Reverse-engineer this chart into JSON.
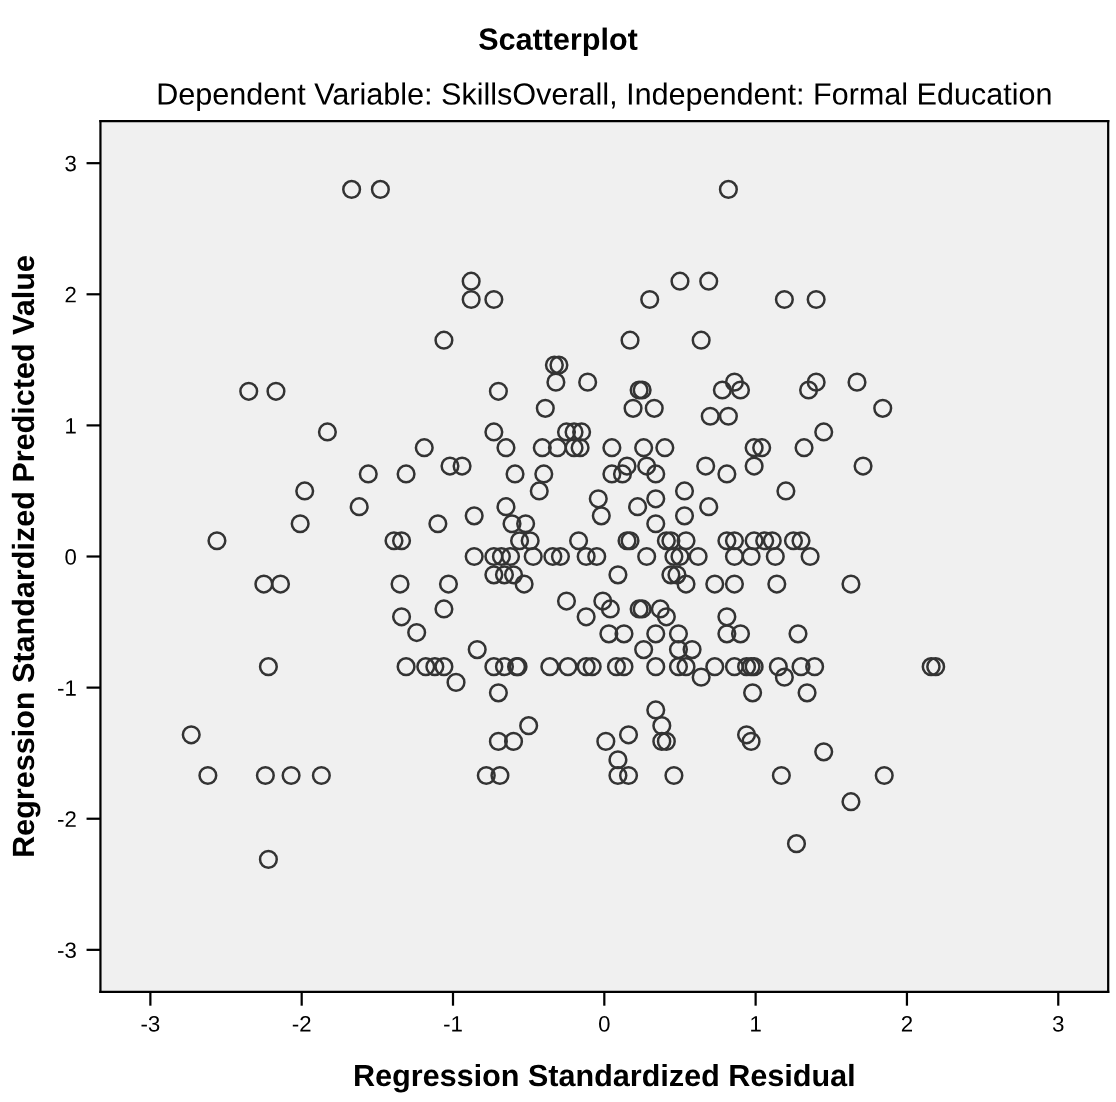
{
  "chart_data": {
    "type": "scatter",
    "title": "Scatterplot",
    "subtitle": "Dependent Variable: SkillsOverall, Independent: Formal Education",
    "xlabel": "Regression Standardized Residual",
    "ylabel": "Regression Standardized Predicted Value",
    "xlim": [
      -3.33,
      3.33
    ],
    "ylim": [
      -3.32,
      3.32
    ],
    "xticks": [
      {
        "value": -3,
        "label": "-3"
      },
      {
        "value": -2,
        "label": "-2"
      },
      {
        "value": -1,
        "label": "-1"
      },
      0,
      1,
      2,
      3
    ],
    "yticks": [
      {
        "value": -3,
        "label": "-3"
      },
      {
        "value": -2,
        "label": "-2"
      },
      {
        "value": -1,
        "label": "-1"
      },
      0,
      1,
      2,
      3
    ],
    "grid": false,
    "legend": false,
    "marker": "circle",
    "series": [
      {
        "color": "#333333",
        "x": [
          -1.67,
          -1.48,
          -0.88,
          -0.88,
          -0.73,
          -1.06,
          -2.35,
          -2.17,
          -0.7,
          -0.33,
          -0.3,
          -0.32,
          -0.39,
          -1.83,
          -0.73,
          -0.65,
          -1.19,
          -0.41,
          -0.31,
          -0.25,
          -0.2,
          -1.02,
          -0.94,
          -1.56,
          -1.31,
          -0.59,
          -0.4,
          -1.98,
          -0.43,
          -1.62,
          -0.65,
          -2.01,
          -1.1,
          -0.86,
          -0.61,
          -0.52,
          -2.56,
          -1.39,
          -1.34,
          -0.56,
          -0.49,
          -2.25,
          -2.14,
          -1.35,
          -1.03,
          -0.86,
          -0.73,
          -0.68,
          -0.62,
          -0.34,
          -0.73,
          -0.66,
          -0.6,
          -0.53,
          -0.47,
          -1.34,
          -1.06,
          -1.24,
          -0.25,
          -2.22,
          -1.31,
          -1.18,
          -1.12,
          -1.06,
          -0.84,
          -0.73,
          -0.66,
          -0.58,
          -0.57,
          -0.36,
          -0.24,
          -0.98,
          -0.7,
          -2.73,
          -0.7,
          -0.6,
          -0.5,
          -2.62,
          -2.24,
          -2.07,
          -1.87,
          -0.78,
          -0.69,
          -2.22,
          0.82,
          0.5,
          0.69,
          0.3,
          1.19,
          1.4,
          0.17,
          0.64,
          -0.11,
          0.23,
          0.25,
          0.19,
          0.33,
          0.78,
          0.86,
          0.9,
          0.7,
          0.82,
          1.35,
          1.4,
          1.67,
          1.84,
          -0.15,
          -0.2,
          -0.16,
          0.05,
          0.26,
          0.4,
          0.05,
          0.12,
          0.15,
          0.28,
          0.34,
          0.67,
          0.81,
          0.99,
          1.04,
          0.99,
          1.32,
          1.45,
          1.71,
          1.2,
          -0.04,
          -0.02,
          0.22,
          0.34,
          0.53,
          0.53,
          0.69,
          0.34,
          -0.17,
          0.15,
          0.17,
          0.41,
          0.44,
          0.54,
          0.81,
          0.86,
          0.99,
          1.06,
          1.11,
          1.25,
          1.3,
          -0.29,
          -0.12,
          -0.05,
          0.28,
          0.46,
          0.5,
          0.62,
          0.86,
          0.97,
          1.13,
          1.36,
          0.09,
          0.44,
          0.48,
          0.54,
          0.73,
          0.86,
          1.14,
          1.63,
          -0.01,
          0.04,
          0.23,
          0.25,
          0.37,
          -0.12,
          0.41,
          0.81,
          0.03,
          0.13,
          0.34,
          0.49,
          0.81,
          0.9,
          1.28,
          0.26,
          0.49,
          0.58,
          -0.12,
          -0.08,
          0.08,
          0.13,
          0.34,
          0.49,
          0.54,
          0.73,
          0.86,
          0.94,
          0.97,
          0.99,
          1.15,
          1.3,
          1.39,
          2.16,
          2.19,
          0.64,
          1.19,
          0.98,
          1.34,
          0.34,
          0.38,
          0.16,
          0.94,
          0.01,
          0.38,
          0.41,
          0.97,
          1.45,
          0.09,
          0.09,
          0.16,
          0.46,
          1.17,
          1.85,
          1.63,
          1.27
        ],
        "values": [
          2.8,
          2.8,
          2.1,
          1.96,
          1.96,
          1.65,
          1.26,
          1.26,
          1.26,
          1.46,
          1.46,
          1.33,
          1.13,
          0.95,
          0.95,
          0.83,
          0.83,
          0.83,
          0.83,
          0.95,
          0.95,
          0.69,
          0.69,
          0.63,
          0.63,
          0.63,
          0.63,
          0.5,
          0.5,
          0.38,
          0.38,
          0.25,
          0.25,
          0.31,
          0.25,
          0.25,
          0.12,
          0.12,
          0.12,
          0.12,
          0.12,
          -0.21,
          -0.21,
          -0.21,
          -0.21,
          0,
          0,
          0,
          0,
          0,
          -0.14,
          -0.14,
          -0.14,
          -0.21,
          0,
          -0.46,
          -0.4,
          -0.58,
          -0.34,
          -0.84,
          -0.84,
          -0.84,
          -0.84,
          -0.84,
          -0.71,
          -0.84,
          -0.84,
          -0.84,
          -0.84,
          -0.84,
          -0.84,
          -0.96,
          -1.04,
          -1.36,
          -1.41,
          -1.41,
          -1.29,
          -1.67,
          -1.67,
          -1.67,
          -1.67,
          -1.67,
          -1.67,
          -2.31,
          2.8,
          2.1,
          2.1,
          1.96,
          1.96,
          1.96,
          1.65,
          1.65,
          1.33,
          1.27,
          1.27,
          1.13,
          1.13,
          1.27,
          1.33,
          1.27,
          1.07,
          1.07,
          1.27,
          1.33,
          1.33,
          1.13,
          0.95,
          0.83,
          0.83,
          0.83,
          0.83,
          0.83,
          0.63,
          0.63,
          0.69,
          0.69,
          0.63,
          0.69,
          0.63,
          0.83,
          0.83,
          0.69,
          0.83,
          0.95,
          0.69,
          0.5,
          0.44,
          0.31,
          0.38,
          0.44,
          0.5,
          0.31,
          0.38,
          0.25,
          0.12,
          0.12,
          0.12,
          0.12,
          0.12,
          0.12,
          0.12,
          0.12,
          0.12,
          0.12,
          0.12,
          0.12,
          0.12,
          0,
          0,
          0,
          0,
          0,
          0,
          0,
          0,
          0,
          0,
          0,
          -0.14,
          -0.14,
          -0.14,
          -0.21,
          -0.21,
          -0.21,
          -0.21,
          -0.21,
          -0.34,
          -0.4,
          -0.4,
          -0.4,
          -0.4,
          -0.46,
          -0.46,
          -0.46,
          -0.59,
          -0.59,
          -0.59,
          -0.59,
          -0.59,
          -0.59,
          -0.59,
          -0.71,
          -0.71,
          -0.71,
          -0.84,
          -0.84,
          -0.84,
          -0.84,
          -0.84,
          -0.84,
          -0.84,
          -0.84,
          -0.84,
          -0.84,
          -0.84,
          -0.84,
          -0.84,
          -0.84,
          -0.84,
          -0.84,
          -0.84,
          -0.92,
          -0.92,
          -1.04,
          -1.04,
          -1.17,
          -1.29,
          -1.36,
          -1.36,
          -1.41,
          -1.41,
          -1.41,
          -1.41,
          -1.49,
          -1.55,
          -1.67,
          -1.67,
          -1.67,
          -1.67,
          -1.67,
          -1.87,
          -2.19
        ]
      }
    ]
  }
}
